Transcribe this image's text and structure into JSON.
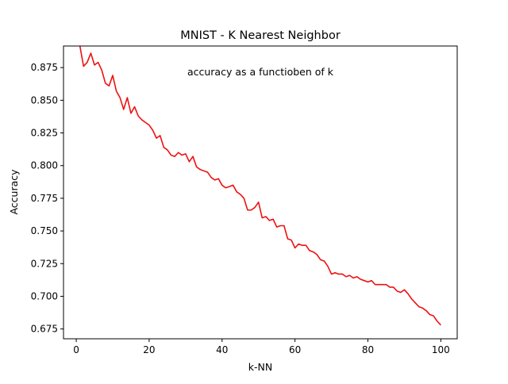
{
  "chart_data": {
    "type": "line",
    "title": "MNIST - K Nearest Neighbor",
    "annotation": "accuracy as a functioben of k",
    "xlabel": "k-NN",
    "ylabel": "Accuracy",
    "xlim": [
      -3.5,
      104.5
    ],
    "ylim": [
      0.6675,
      0.8915
    ],
    "xticks": [
      0,
      20,
      40,
      60,
      80,
      100
    ],
    "xtick_labels": [
      "0",
      "20",
      "40",
      "60",
      "80",
      "100"
    ],
    "yticks": [
      0.675,
      0.7,
      0.725,
      0.75,
      0.775,
      0.8,
      0.825,
      0.85,
      0.875
    ],
    "ytick_labels": [
      "0.675",
      "0.700",
      "0.725",
      "0.750",
      "0.775",
      "0.800",
      "0.825",
      "0.850",
      "0.875"
    ],
    "grid": false,
    "legend": "none",
    "series": [
      {
        "color": "#ee1111",
        "x": [
          1,
          2,
          3,
          4,
          5,
          6,
          7,
          8,
          9,
          10,
          11,
          12,
          13,
          14,
          15,
          16,
          17,
          18,
          19,
          20,
          21,
          22,
          23,
          24,
          25,
          26,
          27,
          28,
          29,
          30,
          31,
          32,
          33,
          34,
          35,
          36,
          37,
          38,
          39,
          40,
          41,
          42,
          43,
          44,
          45,
          46,
          47,
          48,
          49,
          50,
          51,
          52,
          53,
          54,
          55,
          56,
          57,
          58,
          59,
          60,
          61,
          62,
          63,
          64,
          65,
          66,
          67,
          68,
          69,
          70,
          71,
          72,
          73,
          74,
          75,
          76,
          77,
          78,
          79,
          80,
          81,
          82,
          83,
          84,
          85,
          86,
          87,
          88,
          89,
          90,
          91,
          92,
          93,
          94,
          95,
          96,
          97,
          98,
          99,
          100
        ],
        "values": [
          0.8915,
          0.876,
          0.879,
          0.886,
          0.877,
          0.879,
          0.873,
          0.863,
          0.861,
          0.869,
          0.857,
          0.852,
          0.843,
          0.852,
          0.84,
          0.845,
          0.838,
          0.835,
          0.833,
          0.831,
          0.827,
          0.821,
          0.823,
          0.814,
          0.812,
          0.808,
          0.807,
          0.81,
          0.808,
          0.809,
          0.803,
          0.807,
          0.799,
          0.797,
          0.796,
          0.795,
          0.791,
          0.789,
          0.79,
          0.785,
          0.783,
          0.784,
          0.785,
          0.78,
          0.778,
          0.775,
          0.766,
          0.766,
          0.768,
          0.772,
          0.76,
          0.761,
          0.758,
          0.759,
          0.753,
          0.754,
          0.754,
          0.744,
          0.743,
          0.737,
          0.74,
          0.739,
          0.739,
          0.735,
          0.734,
          0.732,
          0.728,
          0.727,
          0.723,
          0.717,
          0.718,
          0.717,
          0.717,
          0.715,
          0.716,
          0.714,
          0.715,
          0.713,
          0.712,
          0.711,
          0.712,
          0.709,
          0.709,
          0.709,
          0.709,
          0.707,
          0.707,
          0.704,
          0.703,
          0.705,
          0.702,
          0.698,
          0.695,
          0.692,
          0.691,
          0.689,
          0.686,
          0.685,
          0.681,
          0.678
        ]
      }
    ]
  }
}
